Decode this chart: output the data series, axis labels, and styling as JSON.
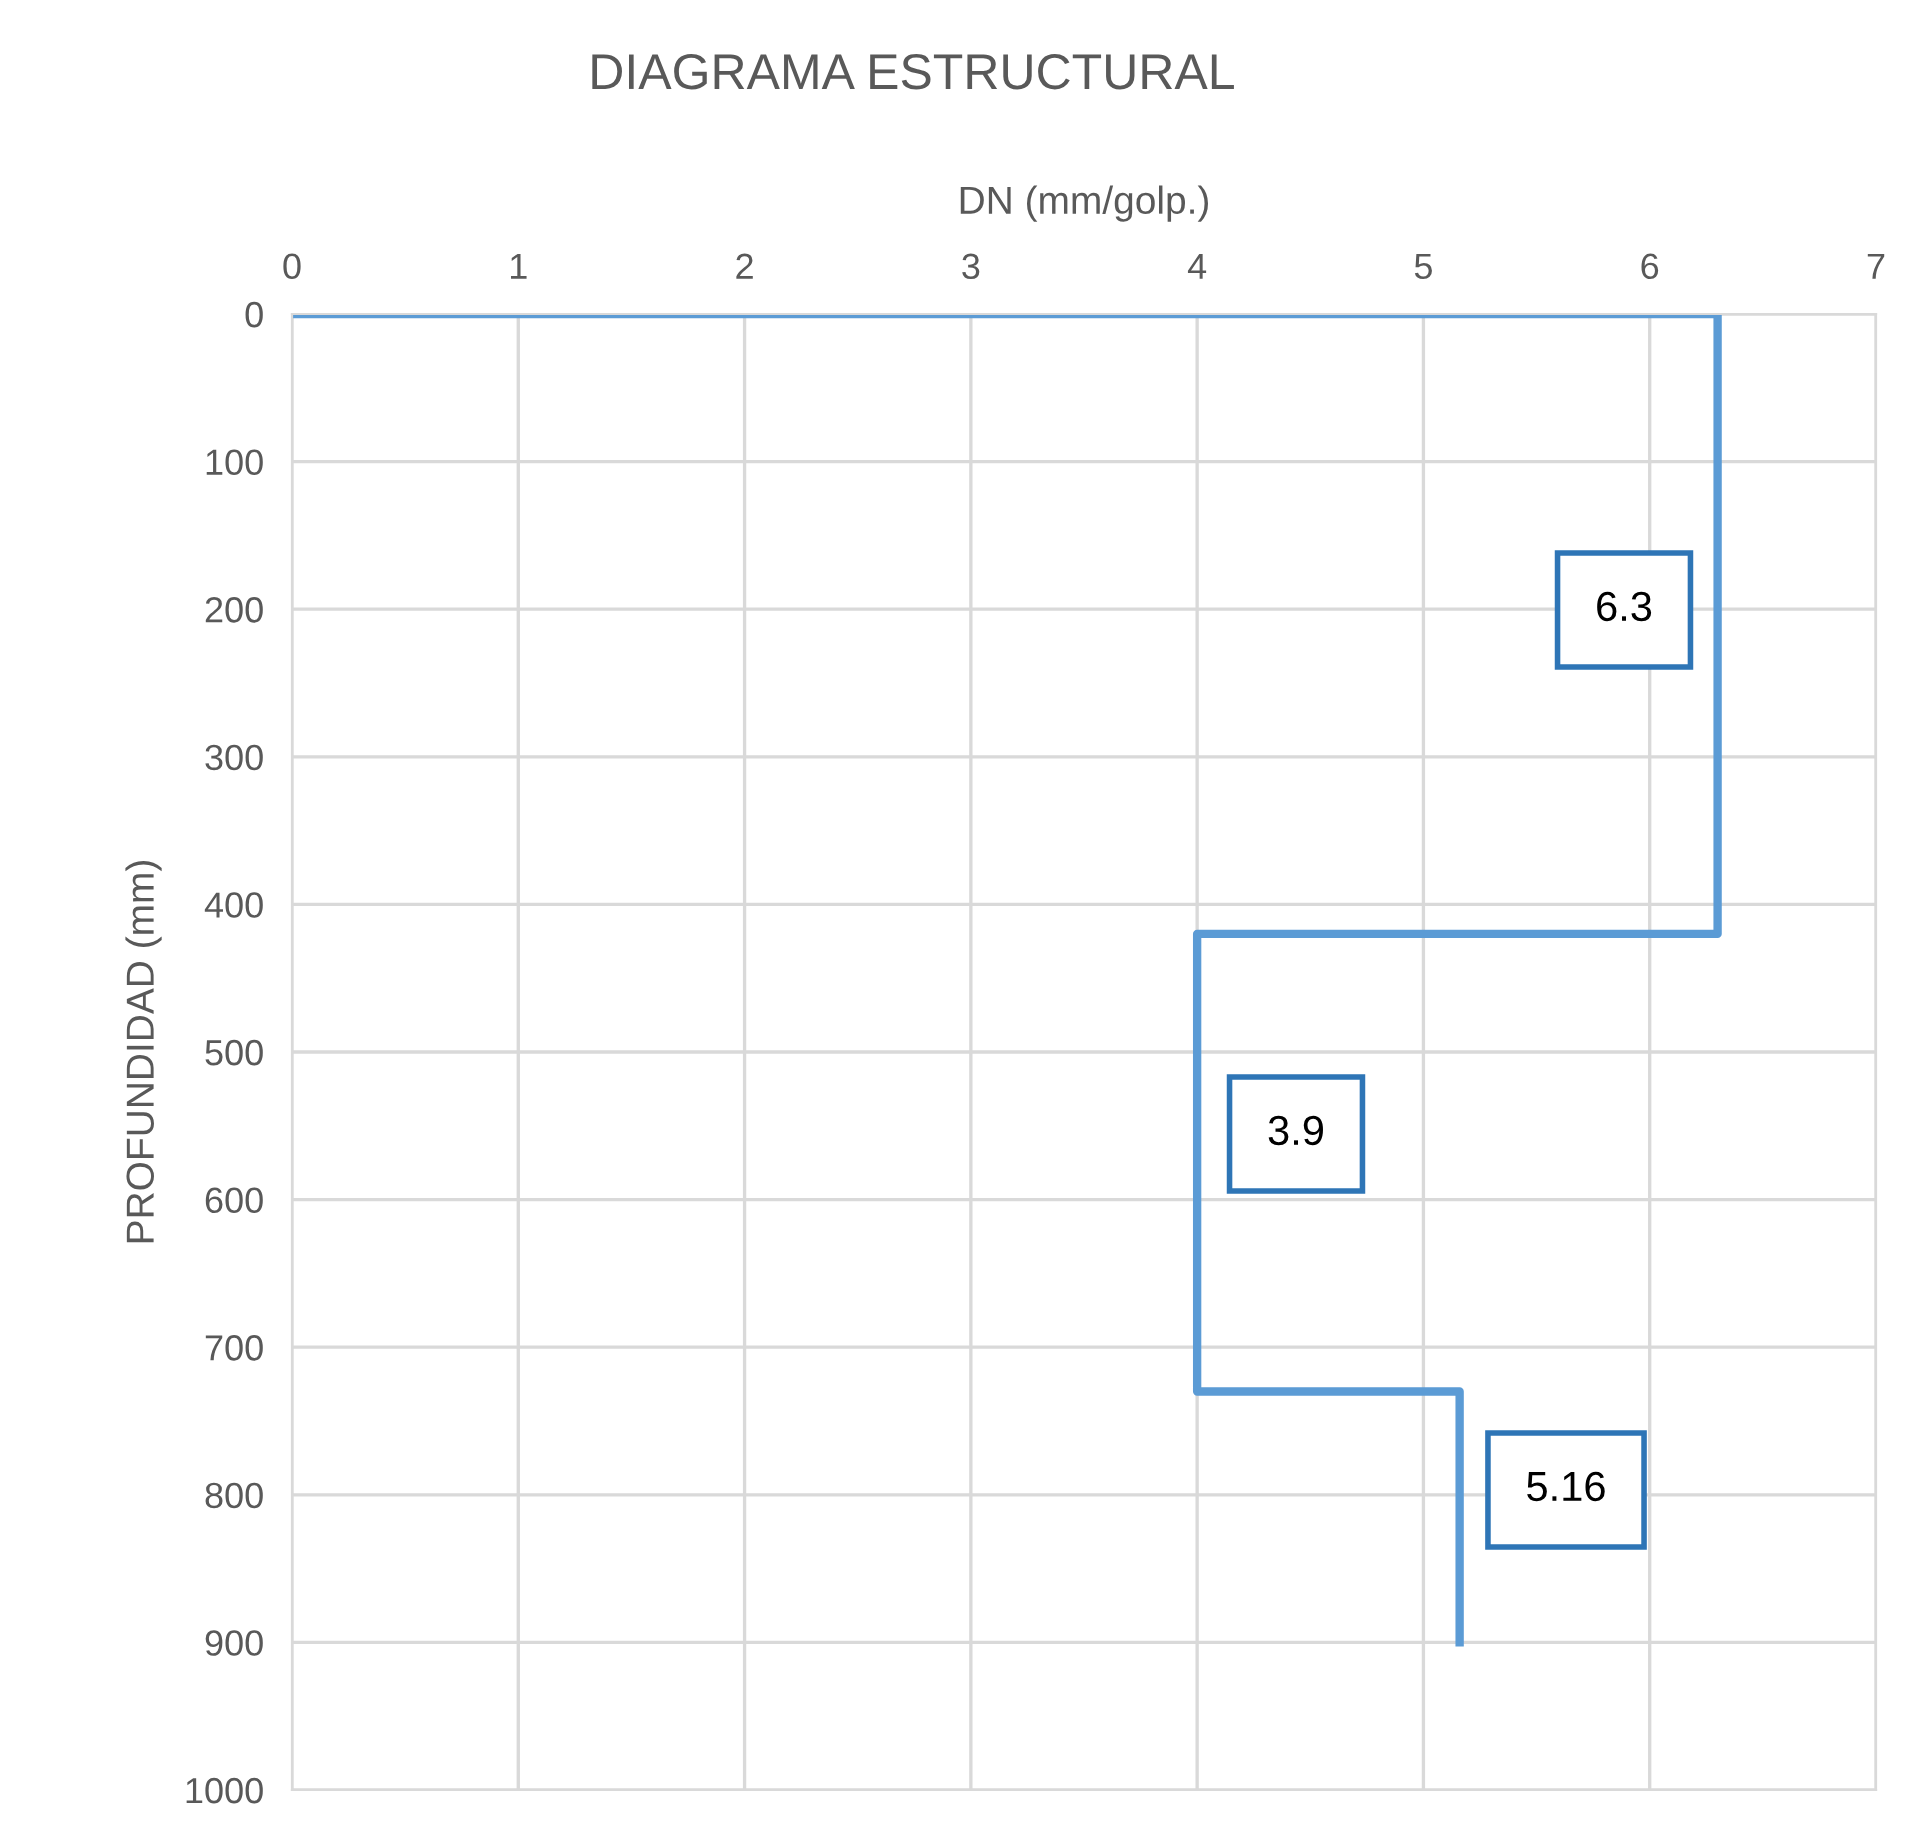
{
  "chart_data": {
    "type": "line",
    "title": "DIAGRAMA ESTRUCTURAL",
    "xlabel": "DN (mm/golp.)",
    "ylabel": "PROFUNDIDAD (mm)",
    "series": [
      {
        "color": "#5b9bd5",
        "x": [
          0,
          6.3,
          6.3,
          4,
          4,
          5.16,
          5.16
        ],
        "values": [
          0,
          0,
          420,
          420,
          730,
          730,
          900
        ]
      }
    ],
    "xlim": [
      0,
      7
    ],
    "xticks": [
      0,
      1,
      2,
      3,
      4,
      5,
      6,
      7
    ],
    "ylim": [
      1000,
      0
    ],
    "yticks": [
      0,
      100,
      200,
      300,
      400,
      500,
      600,
      700,
      800,
      900,
      1000
    ],
    "grid": true,
    "legend": false,
    "marker": "none",
    "line_style": "solid",
    "annotations": [
      "6.3",
      "3.9",
      "5.16"
    ]
  }
}
